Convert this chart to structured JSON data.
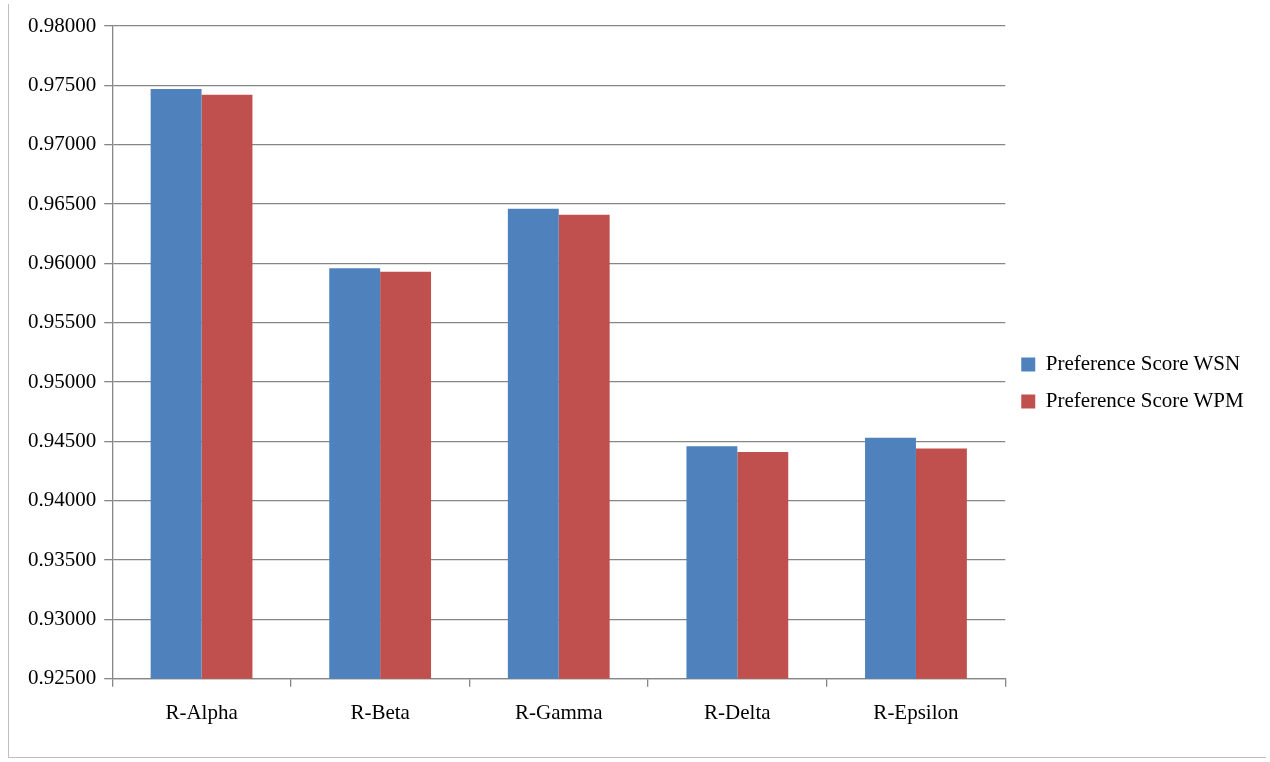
{
  "chart_data": {
    "type": "bar",
    "categories": [
      "R-Alpha",
      "R-Beta",
      "R-Gamma",
      "R-Delta",
      "R-Epsilon"
    ],
    "series": [
      {
        "name": "Preference Score WSN",
        "color": "#4f81bd",
        "values": [
          0.9747,
          0.9596,
          0.9646,
          0.9446,
          0.9453
        ]
      },
      {
        "name": "Preference Score WPM",
        "color": "#c0504d",
        "values": [
          0.9742,
          0.9593,
          0.9641,
          0.9441,
          0.9444
        ]
      }
    ],
    "ylim": [
      0.925,
      0.98
    ],
    "yticks": [
      {
        "value": 0.925,
        "label": "0.92500"
      },
      {
        "value": 0.93,
        "label": "0.93000"
      },
      {
        "value": 0.935,
        "label": "0.93500"
      },
      {
        "value": 0.94,
        "label": "0.94000"
      },
      {
        "value": 0.945,
        "label": "0.94500"
      },
      {
        "value": 0.95,
        "label": "0.95000"
      },
      {
        "value": 0.955,
        "label": "0.95500"
      },
      {
        "value": 0.96,
        "label": "0.96000"
      },
      {
        "value": 0.965,
        "label": "0.96500"
      },
      {
        "value": 0.97,
        "label": "0.97000"
      },
      {
        "value": 0.975,
        "label": "0.97500"
      },
      {
        "value": 0.98,
        "label": "0.98000"
      }
    ],
    "grid": "y",
    "legend": "right"
  }
}
